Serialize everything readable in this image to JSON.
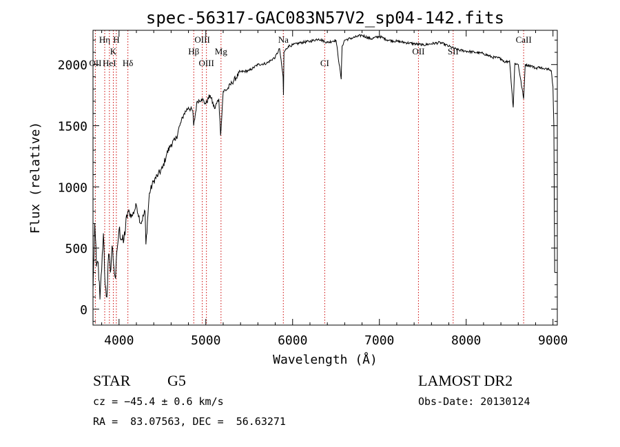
{
  "chart_data": {
    "type": "line",
    "title": "spec-56317-GAC083N57V2_sp04-142.fits",
    "xlabel": "Wavelength (Å)",
    "ylabel": "Flux (relative)",
    "xlim": [
      3700,
      9050
    ],
    "ylim": [
      -130,
      2280
    ],
    "x_ticks": [
      4000,
      5000,
      6000,
      7000,
      8000,
      9000
    ],
    "y_ticks": [
      0,
      500,
      1000,
      1500,
      2000
    ],
    "series": [
      {
        "points": [
          [
            3700,
            150
          ],
          [
            3720,
            700
          ],
          [
            3740,
            350
          ],
          [
            3760,
            380
          ],
          [
            3780,
            80
          ],
          [
            3800,
            320
          ],
          [
            3820,
            620
          ],
          [
            3840,
            200
          ],
          [
            3860,
            100
          ],
          [
            3880,
            450
          ],
          [
            3900,
            300
          ],
          [
            3920,
            520
          ],
          [
            3940,
            350
          ],
          [
            3960,
            250
          ],
          [
            3980,
            500
          ],
          [
            4000,
            650
          ],
          [
            4050,
            540
          ],
          [
            4100,
            800
          ],
          [
            4150,
            760
          ],
          [
            4200,
            850
          ],
          [
            4250,
            700
          ],
          [
            4300,
            800
          ],
          [
            4310,
            530
          ],
          [
            4350,
            950
          ],
          [
            4400,
            1050
          ],
          [
            4450,
            1100
          ],
          [
            4500,
            1150
          ],
          [
            4550,
            1270
          ],
          [
            4600,
            1350
          ],
          [
            4650,
            1380
          ],
          [
            4700,
            1500
          ],
          [
            4750,
            1600
          ],
          [
            4800,
            1650
          ],
          [
            4850,
            1620
          ],
          [
            4860,
            1500
          ],
          [
            4900,
            1700
          ],
          [
            4950,
            1720
          ],
          [
            5000,
            1680
          ],
          [
            5050,
            1750
          ],
          [
            5100,
            1640
          ],
          [
            5150,
            1720
          ],
          [
            5170,
            1420
          ],
          [
            5200,
            1780
          ],
          [
            5250,
            1800
          ],
          [
            5300,
            1850
          ],
          [
            5400,
            1940
          ],
          [
            5500,
            1950
          ],
          [
            5600,
            2000
          ],
          [
            5700,
            2010
          ],
          [
            5800,
            2060
          ],
          [
            5850,
            2130
          ],
          [
            5890,
            1900
          ],
          [
            5895,
            1750
          ],
          [
            5900,
            2100
          ],
          [
            5950,
            2150
          ],
          [
            6000,
            2160
          ],
          [
            6100,
            2180
          ],
          [
            6200,
            2190
          ],
          [
            6300,
            2210
          ],
          [
            6400,
            2180
          ],
          [
            6500,
            2200
          ],
          [
            6560,
            1880
          ],
          [
            6570,
            2150
          ],
          [
            6600,
            2200
          ],
          [
            6700,
            2220
          ],
          [
            6800,
            2240
          ],
          [
            6900,
            2210
          ],
          [
            7000,
            2230
          ],
          [
            7100,
            2200
          ],
          [
            7200,
            2190
          ],
          [
            7300,
            2180
          ],
          [
            7400,
            2170
          ],
          [
            7500,
            2160
          ],
          [
            7600,
            2170
          ],
          [
            7700,
            2180
          ],
          [
            7800,
            2150
          ],
          [
            7900,
            2120
          ],
          [
            8000,
            2110
          ],
          [
            8100,
            2100
          ],
          [
            8200,
            2090
          ],
          [
            8300,
            2060
          ],
          [
            8400,
            2050
          ],
          [
            8450,
            2020
          ],
          [
            8500,
            2030
          ],
          [
            8542,
            1650
          ],
          [
            8560,
            2010
          ],
          [
            8600,
            2000
          ],
          [
            8662,
            1720
          ],
          [
            8680,
            2000
          ],
          [
            8750,
            1990
          ],
          [
            8800,
            1970
          ],
          [
            8850,
            1980
          ],
          [
            8900,
            1960
          ],
          [
            8950,
            1970
          ],
          [
            8980,
            1950
          ],
          [
            9000,
            1820
          ],
          [
            9010,
            1500
          ],
          [
            9020,
            300
          ]
        ]
      }
    ],
    "line_markers": [
      {
        "label": "OII",
        "x": 3727,
        "row": 3
      },
      {
        "label": "Hη",
        "x": 3835,
        "row": 1
      },
      {
        "label": "HeI",
        "x": 3889,
        "row": 3
      },
      {
        "label": "K",
        "x": 3934,
        "row": 2
      },
      {
        "label": "H",
        "x": 3969,
        "row": 1
      },
      {
        "label": "Hδ",
        "x": 4102,
        "row": 3
      },
      {
        "label": "Hβ",
        "x": 4861,
        "row": 2
      },
      {
        "label": "OIII",
        "x": 4959,
        "row": 1
      },
      {
        "label": "OIII",
        "x": 5007,
        "row": 3
      },
      {
        "label": "Mg",
        "x": 5175,
        "row": 2
      },
      {
        "label": "Na",
        "x": 5893,
        "row": 1
      },
      {
        "label": "CI",
        "x": 6370,
        "row": 3
      },
      {
        "label": "OII",
        "x": 7450,
        "row": 2
      },
      {
        "label": "SII",
        "x": 7850,
        "row": 2
      },
      {
        "label": "CaII",
        "x": 8662,
        "row": 1
      }
    ]
  },
  "info": {
    "object_class": "STAR",
    "subclass": "G5",
    "survey": "LAMOST DR2",
    "redshift": "cz = −45.4 ± 0.6 km/s",
    "obs_date": "Obs-Date: 20130124",
    "coords": "RA =  83.07563, DEC =  56.63271"
  },
  "colors": {
    "spectrum": "#000000",
    "marker_line": "#cc0000",
    "axes": "#000000"
  }
}
